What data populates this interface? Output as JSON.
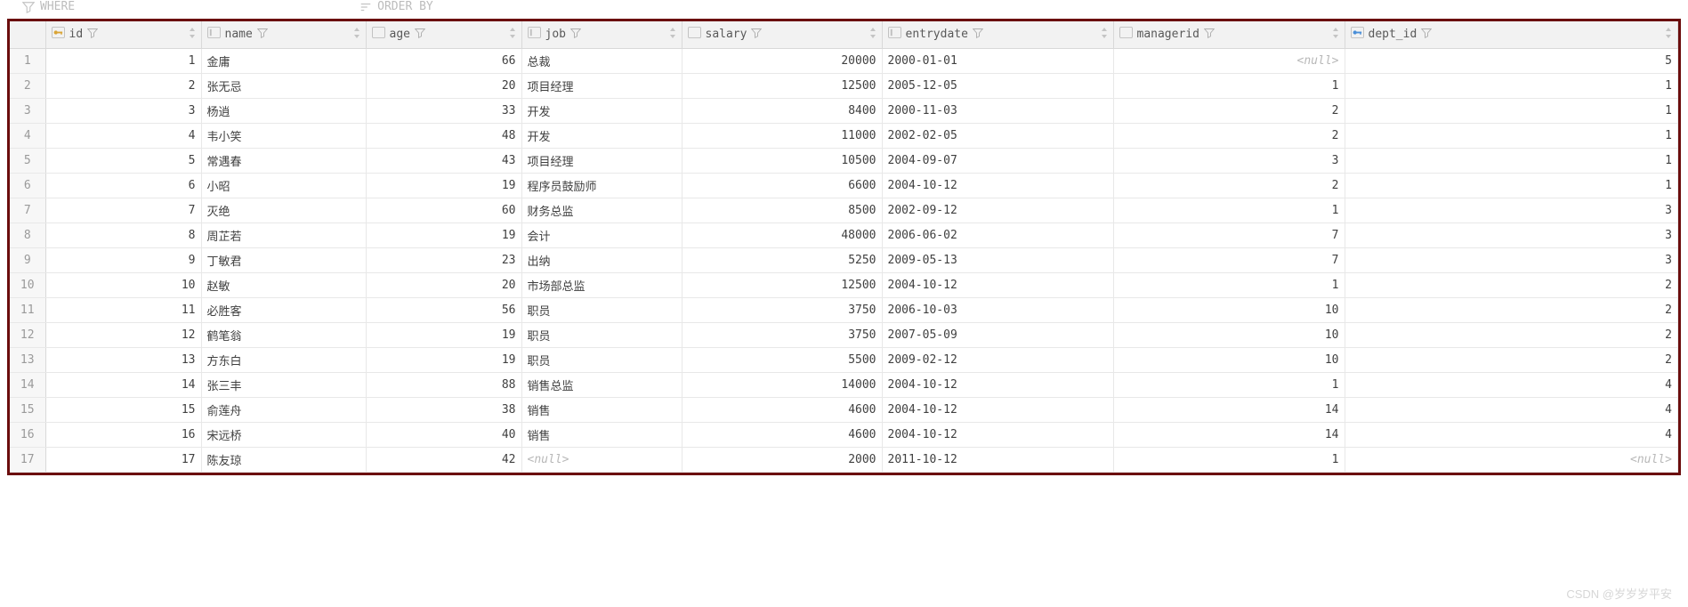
{
  "toolbar": {
    "where_label": "WHERE",
    "orderby_label": "ORDER BY"
  },
  "columns": [
    {
      "key": "id",
      "label": "id",
      "icon": "key",
      "align": "num"
    },
    {
      "key": "name",
      "label": "name",
      "icon": "text",
      "align": "str"
    },
    {
      "key": "age",
      "label": "age",
      "icon": "num",
      "align": "num"
    },
    {
      "key": "job",
      "label": "job",
      "icon": "text",
      "align": "str"
    },
    {
      "key": "salary",
      "label": "salary",
      "icon": "num",
      "align": "num"
    },
    {
      "key": "entrydate",
      "label": "entrydate",
      "icon": "text",
      "align": "str"
    },
    {
      "key": "managerid",
      "label": "managerid",
      "icon": "num",
      "align": "num"
    },
    {
      "key": "dept_id",
      "label": "dept_id",
      "icon": "fk",
      "align": "num"
    }
  ],
  "rows": [
    {
      "id": 1,
      "name": "金庸",
      "age": 66,
      "job": "总裁",
      "salary": 20000,
      "entrydate": "2000-01-01",
      "managerid": null,
      "dept_id": 5
    },
    {
      "id": 2,
      "name": "张无忌",
      "age": 20,
      "job": "项目经理",
      "salary": 12500,
      "entrydate": "2005-12-05",
      "managerid": 1,
      "dept_id": 1
    },
    {
      "id": 3,
      "name": "杨逍",
      "age": 33,
      "job": "开发",
      "salary": 8400,
      "entrydate": "2000-11-03",
      "managerid": 2,
      "dept_id": 1
    },
    {
      "id": 4,
      "name": "韦小笑",
      "age": 48,
      "job": "开发",
      "salary": 11000,
      "entrydate": "2002-02-05",
      "managerid": 2,
      "dept_id": 1
    },
    {
      "id": 5,
      "name": "常遇春",
      "age": 43,
      "job": "项目经理",
      "salary": 10500,
      "entrydate": "2004-09-07",
      "managerid": 3,
      "dept_id": 1
    },
    {
      "id": 6,
      "name": "小昭",
      "age": 19,
      "job": "程序员鼓励师",
      "salary": 6600,
      "entrydate": "2004-10-12",
      "managerid": 2,
      "dept_id": 1
    },
    {
      "id": 7,
      "name": "灭绝",
      "age": 60,
      "job": "财务总监",
      "salary": 8500,
      "entrydate": "2002-09-12",
      "managerid": 1,
      "dept_id": 3
    },
    {
      "id": 8,
      "name": "周芷若",
      "age": 19,
      "job": "会计",
      "salary": 48000,
      "entrydate": "2006-06-02",
      "managerid": 7,
      "dept_id": 3
    },
    {
      "id": 9,
      "name": "丁敏君",
      "age": 23,
      "job": "出纳",
      "salary": 5250,
      "entrydate": "2009-05-13",
      "managerid": 7,
      "dept_id": 3
    },
    {
      "id": 10,
      "name": "赵敏",
      "age": 20,
      "job": "市场部总监",
      "salary": 12500,
      "entrydate": "2004-10-12",
      "managerid": 1,
      "dept_id": 2
    },
    {
      "id": 11,
      "name": "必胜客",
      "age": 56,
      "job": "职员",
      "salary": 3750,
      "entrydate": "2006-10-03",
      "managerid": 10,
      "dept_id": 2
    },
    {
      "id": 12,
      "name": "鹤笔翁",
      "age": 19,
      "job": "职员",
      "salary": 3750,
      "entrydate": "2007-05-09",
      "managerid": 10,
      "dept_id": 2
    },
    {
      "id": 13,
      "name": "方东白",
      "age": 19,
      "job": "职员",
      "salary": 5500,
      "entrydate": "2009-02-12",
      "managerid": 10,
      "dept_id": 2
    },
    {
      "id": 14,
      "name": "张三丰",
      "age": 88,
      "job": "销售总监",
      "salary": 14000,
      "entrydate": "2004-10-12",
      "managerid": 1,
      "dept_id": 4
    },
    {
      "id": 15,
      "name": "俞莲舟",
      "age": 38,
      "job": "销售",
      "salary": 4600,
      "entrydate": "2004-10-12",
      "managerid": 14,
      "dept_id": 4
    },
    {
      "id": 16,
      "name": "宋远桥",
      "age": 40,
      "job": "销售",
      "salary": 4600,
      "entrydate": "2004-10-12",
      "managerid": 14,
      "dept_id": 4
    },
    {
      "id": 17,
      "name": "陈友琼",
      "age": 42,
      "job": null,
      "salary": 2000,
      "entrydate": "2011-10-12",
      "managerid": 1,
      "dept_id": null
    }
  ],
  "null_label": "<null>",
  "watermark": "CSDN @岁岁岁平安",
  "colors": {
    "border_outer": "#6b0d0d",
    "header_bg": "#f2f2f2",
    "header_border": "#d9d9d9",
    "cell_border": "#e8e8e8",
    "rownum_bg": "#f7f7f7",
    "text": "#404040",
    "muted": "#9a9a9a",
    "null": "#b8b8b8",
    "key_icon": "#d9a436",
    "fk_icon": "#4a8fd8"
  }
}
